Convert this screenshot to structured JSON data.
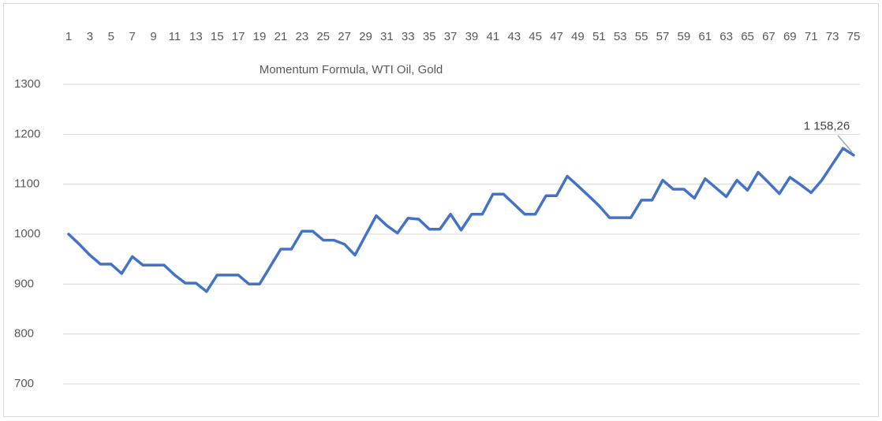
{
  "chart_data": {
    "type": "line",
    "title": "Momentum Formula, WTI Oil, Gold",
    "categories": [
      1,
      null,
      3,
      null,
      5,
      null,
      7,
      null,
      9,
      null,
      11,
      null,
      13,
      null,
      15,
      null,
      17,
      null,
      19,
      null,
      21,
      null,
      23,
      null,
      25,
      null,
      27,
      null,
      29,
      null,
      31,
      null,
      33,
      null,
      35,
      null,
      37,
      null,
      39,
      null,
      41,
      null,
      43,
      null,
      45,
      null,
      47,
      null,
      49,
      null,
      51,
      null,
      53,
      null,
      55,
      null,
      57,
      null,
      59,
      null,
      61,
      null,
      63,
      null,
      65,
      null,
      67,
      null,
      69,
      null,
      71,
      null,
      73,
      null,
      75
    ],
    "series": [
      {
        "name": "Momentum Formula, WTI Oil, Gold",
        "color": "#4472c4",
        "values": [
          1000,
          980,
          958,
          940,
          940,
          921,
          955,
          938,
          938,
          938,
          918,
          902,
          902,
          885,
          918,
          918,
          918,
          900,
          900,
          935,
          970,
          970,
          1006,
          1006,
          988,
          988,
          980,
          958,
          998,
          1037,
          1017,
          1002,
          1032,
          1030,
          1010,
          1010,
          1040,
          1008,
          1040,
          1040,
          1080,
          1080,
          1060,
          1040,
          1040,
          1077,
          1077,
          1116,
          1097,
          1077,
          1057,
          1033,
          1033,
          1033,
          1068,
          1068,
          1108,
          1090,
          1090,
          1072,
          1111,
          1093,
          1075,
          1108,
          1088,
          1124,
          1103,
          1081,
          1114,
          1099,
          1083,
          1108,
          1140,
          1172,
          1158.26
        ],
        "value_labels": [
          null,
          null,
          null,
          null,
          null,
          null,
          null,
          null,
          null,
          null,
          null,
          null,
          null,
          null,
          null,
          null,
          null,
          null,
          null,
          null,
          null,
          null,
          null,
          null,
          null,
          null,
          null,
          null,
          null,
          null,
          null,
          null,
          null,
          null,
          null,
          null,
          null,
          null,
          null,
          null,
          null,
          null,
          null,
          null,
          null,
          null,
          null,
          null,
          null,
          null,
          null,
          null,
          null,
          null,
          null,
          null,
          null,
          null,
          null,
          null,
          null,
          null,
          null,
          null,
          null,
          null,
          null,
          null,
          null,
          null,
          null,
          null,
          null,
          null,
          "1 158,26"
        ]
      }
    ],
    "ylim": [
      700,
      1300
    ],
    "yticks": [
      700,
      800,
      900,
      1000,
      1100,
      1200,
      1300
    ],
    "grid": true
  }
}
